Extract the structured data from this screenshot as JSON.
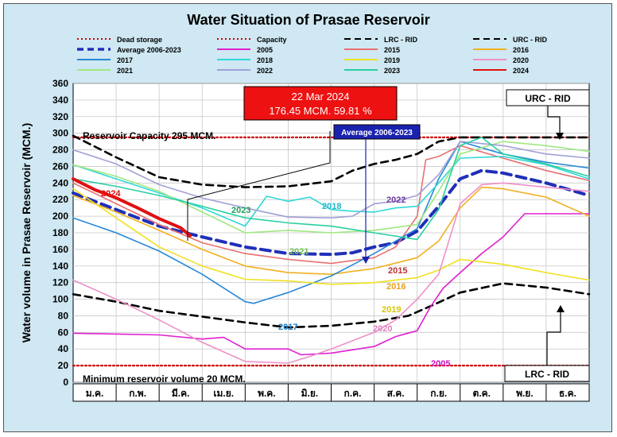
{
  "chart_data": {
    "type": "line",
    "title": "Water Situation of Prasae Reservoir",
    "ylabel": "Water volume in Prasae Reservoir (MCM.)",
    "xlabel": "",
    "ylim": [
      0,
      360
    ],
    "yticks": [
      0,
      20,
      40,
      60,
      80,
      100,
      120,
      140,
      160,
      180,
      200,
      220,
      240,
      260,
      280,
      300,
      320,
      340,
      360
    ],
    "categories": [
      "ม.ค.",
      "ก.พ.",
      "มี.ค.",
      "เม.ย.",
      "พ.ค.",
      "มิ.ย.",
      "ก.ค.",
      "ส.ค.",
      "ก.ย.",
      "ต.ค.",
      "พ.ย.",
      "ธ.ค."
    ],
    "reference_lines": [
      {
        "name": "Dead storage",
        "value": 20,
        "color": "#cc0000"
      },
      {
        "name": "Capacity",
        "value": 295,
        "color": "#cc0000"
      }
    ],
    "series": [
      {
        "name": "Dead storage",
        "color": "#cc0000",
        "style": "dotted",
        "points": [
          [
            0,
            20
          ],
          [
            12,
            20
          ]
        ]
      },
      {
        "name": "Capacity",
        "color": "#cc0000",
        "style": "dotted",
        "points": [
          [
            0,
            295
          ],
          [
            12,
            295
          ]
        ]
      },
      {
        "name": "LRC - RID",
        "color": "#000000",
        "style": "dashed",
        "points": [
          [
            0,
            106
          ],
          [
            1,
            97
          ],
          [
            2,
            86
          ],
          [
            3,
            79
          ],
          [
            4,
            72
          ],
          [
            5,
            66
          ],
          [
            6,
            68
          ],
          [
            7,
            73
          ],
          [
            7.8,
            80
          ],
          [
            8.5,
            96
          ],
          [
            9,
            108
          ],
          [
            10,
            119
          ],
          [
            11,
            114
          ],
          [
            12,
            106
          ]
        ]
      },
      {
        "name": "URC - RID",
        "color": "#000000",
        "style": "dashed",
        "points": [
          [
            0,
            297
          ],
          [
            1,
            271
          ],
          [
            2,
            247
          ],
          [
            3,
            238
          ],
          [
            4,
            235
          ],
          [
            5,
            236
          ],
          [
            6,
            242
          ],
          [
            6.5,
            255
          ],
          [
            7,
            263
          ],
          [
            7.5,
            268
          ],
          [
            8,
            275
          ],
          [
            8.5,
            290
          ],
          [
            9,
            295
          ],
          [
            12,
            295
          ]
        ]
      },
      {
        "name": "Average 2006-2023",
        "color": "#1f2fb8",
        "style": "dashed",
        "points": [
          [
            0,
            228
          ],
          [
            1,
            208
          ],
          [
            2,
            188
          ],
          [
            3,
            175
          ],
          [
            4,
            163
          ],
          [
            5,
            155
          ],
          [
            6,
            154
          ],
          [
            6.5,
            156
          ],
          [
            7,
            163
          ],
          [
            7.5,
            168
          ],
          [
            8,
            182
          ],
          [
            8.5,
            212
          ],
          [
            9,
            245
          ],
          [
            9.5,
            255
          ],
          [
            10,
            252
          ],
          [
            11,
            240
          ],
          [
            12,
            225
          ]
        ]
      },
      {
        "name": "2005",
        "color": "#e020d0",
        "style": "solid",
        "points": [
          [
            0,
            59
          ],
          [
            1,
            58
          ],
          [
            2,
            57
          ],
          [
            3,
            52
          ],
          [
            3.5,
            54
          ],
          [
            4,
            40
          ],
          [
            5,
            40
          ],
          [
            5.3,
            33
          ],
          [
            6,
            35
          ],
          [
            7,
            43
          ],
          [
            7.5,
            55
          ],
          [
            8,
            62
          ],
          [
            8.3,
            90
          ],
          [
            8.6,
            113
          ],
          [
            9,
            132
          ],
          [
            9.5,
            155
          ],
          [
            10,
            175
          ],
          [
            10.5,
            203
          ],
          [
            12,
            203
          ]
        ]
      },
      {
        "name": "2015",
        "color": "#e87070",
        "style": "solid",
        "points": [
          [
            0,
            240
          ],
          [
            1,
            215
          ],
          [
            2,
            190
          ],
          [
            3,
            168
          ],
          [
            4,
            155
          ],
          [
            5,
            148
          ],
          [
            6,
            143
          ],
          [
            7,
            150
          ],
          [
            7.5,
            163
          ],
          [
            8,
            200
          ],
          [
            8.2,
            268
          ],
          [
            8.5,
            272
          ],
          [
            9,
            285
          ],
          [
            10,
            270
          ],
          [
            11,
            255
          ],
          [
            12,
            243
          ]
        ]
      },
      {
        "name": "2016",
        "color": "#f0b020",
        "style": "solid",
        "points": [
          [
            0,
            225
          ],
          [
            1,
            205
          ],
          [
            2,
            183
          ],
          [
            3,
            160
          ],
          [
            4,
            140
          ],
          [
            5,
            132
          ],
          [
            6,
            130
          ],
          [
            7,
            137
          ],
          [
            8,
            150
          ],
          [
            8.5,
            170
          ],
          [
            9,
            210
          ],
          [
            9.5,
            235
          ],
          [
            10,
            233
          ],
          [
            11,
            223
          ],
          [
            12,
            200
          ]
        ]
      },
      {
        "name": "2017",
        "color": "#2888d8",
        "style": "solid",
        "points": [
          [
            0,
            198
          ],
          [
            1,
            180
          ],
          [
            2,
            158
          ],
          [
            3,
            130
          ],
          [
            4,
            97
          ],
          [
            4.2,
            95
          ],
          [
            5,
            108
          ],
          [
            6,
            128
          ],
          [
            7,
            155
          ],
          [
            8,
            185
          ],
          [
            8.5,
            245
          ],
          [
            9,
            290
          ],
          [
            10,
            275
          ],
          [
            11,
            265
          ],
          [
            12,
            258
          ]
        ]
      },
      {
        "name": "2018",
        "color": "#30d8d8",
        "style": "solid",
        "points": [
          [
            0,
            262
          ],
          [
            1,
            245
          ],
          [
            2,
            228
          ],
          [
            3,
            210
          ],
          [
            4,
            188
          ],
          [
            4.5,
            224
          ],
          [
            5,
            218
          ],
          [
            5.5,
            223
          ],
          [
            6,
            208
          ],
          [
            6.5,
            206
          ],
          [
            7,
            205
          ],
          [
            7.5,
            210
          ],
          [
            8,
            212
          ],
          [
            8.5,
            240
          ],
          [
            9,
            270
          ],
          [
            10,
            272
          ],
          [
            11,
            262
          ],
          [
            12,
            245
          ]
        ]
      },
      {
        "name": "2019",
        "color": "#f0e020",
        "style": "solid",
        "points": [
          [
            0,
            233
          ],
          [
            1,
            198
          ],
          [
            2,
            163
          ],
          [
            3,
            140
          ],
          [
            4,
            124
          ],
          [
            5,
            122
          ],
          [
            6,
            118
          ],
          [
            7,
            120
          ],
          [
            8,
            126
          ],
          [
            8.5,
            135
          ],
          [
            9,
            148
          ],
          [
            10,
            142
          ],
          [
            11,
            132
          ],
          [
            12,
            123
          ]
        ]
      },
      {
        "name": "2020",
        "color": "#ee90c8",
        "style": "solid",
        "points": [
          [
            0,
            123
          ],
          [
            1,
            100
          ],
          [
            2,
            75
          ],
          [
            3,
            48
          ],
          [
            4,
            25
          ],
          [
            5,
            23
          ],
          [
            5.5,
            31
          ],
          [
            6,
            40
          ],
          [
            7,
            60
          ],
          [
            7.5,
            75
          ],
          [
            8,
            100
          ],
          [
            8.5,
            130
          ],
          [
            9,
            215
          ],
          [
            9.5,
            238
          ],
          [
            10,
            240
          ],
          [
            11,
            235
          ],
          [
            12,
            230
          ]
        ]
      },
      {
        "name": "2021",
        "color": "#a0e880",
        "style": "solid",
        "points": [
          [
            0,
            262
          ],
          [
            1,
            248
          ],
          [
            2,
            230
          ],
          [
            3,
            205
          ],
          [
            4,
            180
          ],
          [
            5,
            183
          ],
          [
            6,
            180
          ],
          [
            7,
            183
          ],
          [
            8,
            190
          ],
          [
            8.5,
            230
          ],
          [
            9,
            275
          ],
          [
            10,
            290
          ],
          [
            11,
            285
          ],
          [
            12,
            278
          ]
        ]
      },
      {
        "name": "2022",
        "color": "#a0a0d8",
        "style": "solid",
        "points": [
          [
            0,
            280
          ],
          [
            1,
            263
          ],
          [
            2,
            238
          ],
          [
            3,
            222
          ],
          [
            4,
            210
          ],
          [
            5,
            199
          ],
          [
            6,
            198
          ],
          [
            6.5,
            200
          ],
          [
            7,
            215
          ],
          [
            7.5,
            218
          ],
          [
            8,
            225
          ],
          [
            8.5,
            250
          ],
          [
            9,
            290
          ],
          [
            10,
            285
          ],
          [
            11,
            275
          ],
          [
            12,
            270
          ]
        ]
      },
      {
        "name": "2023",
        "color": "#28d0a0",
        "style": "solid",
        "points": [
          [
            0,
            245
          ],
          [
            1,
            236
          ],
          [
            2,
            225
          ],
          [
            3,
            212
          ],
          [
            4,
            198
          ],
          [
            5,
            192
          ],
          [
            6,
            188
          ],
          [
            7,
            180
          ],
          [
            8,
            172
          ],
          [
            8.5,
            208
          ],
          [
            9,
            285
          ],
          [
            9.5,
            295
          ],
          [
            10,
            275
          ],
          [
            11,
            263
          ],
          [
            12,
            248
          ]
        ]
      },
      {
        "name": "2024",
        "color": "#e01010",
        "style": "solid",
        "points": [
          [
            0,
            245
          ],
          [
            0.5,
            232
          ],
          [
            1,
            222
          ],
          [
            1.5,
            210
          ],
          [
            2,
            197
          ],
          [
            2.5,
            186
          ],
          [
            2.72,
            176.45
          ]
        ]
      }
    ],
    "annotations": [
      {
        "text": "2024",
        "color": "#e01010"
      },
      {
        "text": "2023",
        "color": "#20a060"
      },
      {
        "text": "2021",
        "color": "#70c050"
      },
      {
        "text": "2018",
        "color": "#20b8c8"
      },
      {
        "text": "2022",
        "color": "#6a3aa0"
      },
      {
        "text": "2015",
        "color": "#c03030"
      },
      {
        "text": "2016",
        "color": "#e8a020"
      },
      {
        "text": "2019",
        "color": "#d8c800"
      },
      {
        "text": "2020",
        "color": "#e080c0"
      },
      {
        "text": "2017",
        "color": "#2080c8"
      },
      {
        "text": "2005",
        "color": "#d010c0"
      },
      {
        "text": "Reservoir Capacity 295 MCM.",
        "color": "#000000"
      },
      {
        "text": "Minimum reservoir volume 20 MCM.",
        "color": "#000000"
      }
    ],
    "callouts": {
      "current_date": "22 Mar 2024",
      "current_value": "176.45 MCM. 59.81 %",
      "average_label": "Average 2006-2023",
      "urc_label": "URC - RID",
      "lrc_label": "LRC - RID"
    }
  }
}
